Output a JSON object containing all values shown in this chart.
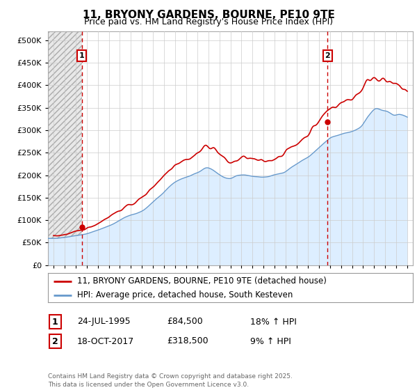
{
  "title": "11, BRYONY GARDENS, BOURNE, PE10 9TE",
  "subtitle": "Price paid vs. HM Land Registry's House Price Index (HPI)",
  "legend_line1": "11, BRYONY GARDENS, BOURNE, PE10 9TE (detached house)",
  "legend_line2": "HPI: Average price, detached house, South Kesteven",
  "footer": "Contains HM Land Registry data © Crown copyright and database right 2025.\nThis data is licensed under the Open Government Licence v3.0.",
  "annotation1_label": "1",
  "annotation1_date": "24-JUL-1995",
  "annotation1_price": "£84,500",
  "annotation1_hpi": "18% ↑ HPI",
  "annotation2_label": "2",
  "annotation2_date": "18-OCT-2017",
  "annotation2_price": "£318,500",
  "annotation2_hpi": "9% ↑ HPI",
  "sale1_x": 1995.56,
  "sale1_y": 84500,
  "sale2_x": 2017.79,
  "sale2_y": 318500,
  "price_line_color": "#cc0000",
  "hpi_line_color": "#6699cc",
  "hpi_fill_color": "#ddeeff",
  "sale_marker_color": "#cc0000",
  "dashed_line_color": "#cc0000",
  "hatch_color": "#cccccc",
  "grid_color": "#cccccc",
  "ylim": [
    0,
    520000
  ],
  "yticks": [
    0,
    50000,
    100000,
    150000,
    200000,
    250000,
    300000,
    350000,
    400000,
    450000,
    500000
  ],
  "xlim_start": 1992.5,
  "xlim_end": 2025.5
}
